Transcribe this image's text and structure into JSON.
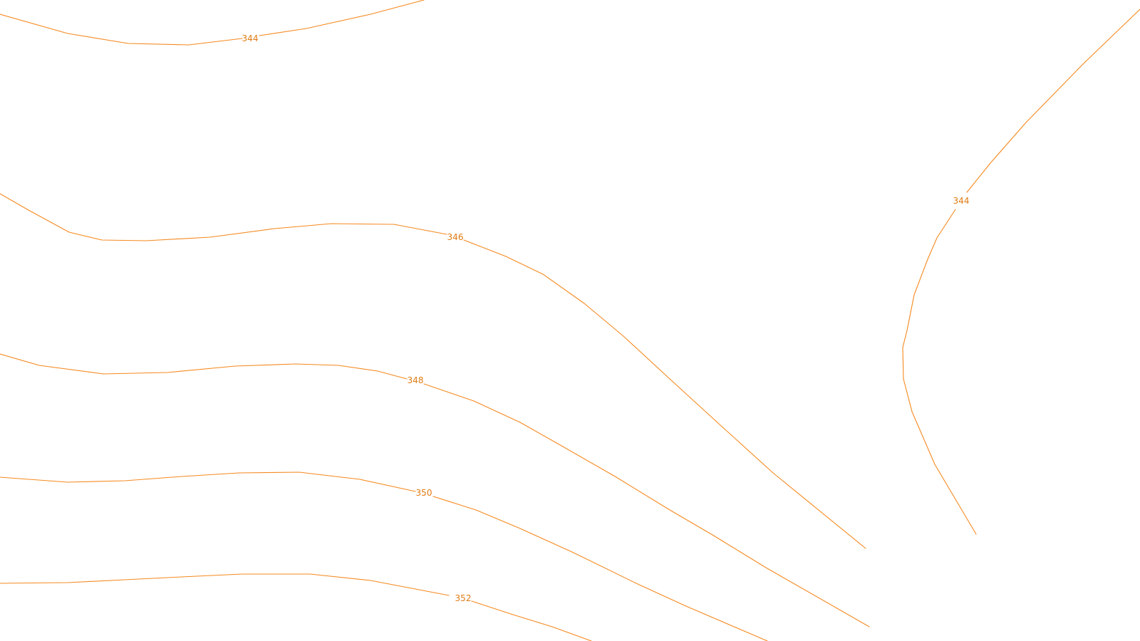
{
  "map": {
    "line_color": "#f5891f",
    "label_color": "#e07b12",
    "background": "#ffffff",
    "contours": [
      {
        "id": "a",
        "elevation": "344"
      },
      {
        "id": "b",
        "elevation": "346"
      },
      {
        "id": "c",
        "elevation": "348"
      },
      {
        "id": "d",
        "elevation": "350"
      },
      {
        "id": "e",
        "elevation": "352"
      },
      {
        "id": "f",
        "elevation": "344"
      }
    ]
  }
}
